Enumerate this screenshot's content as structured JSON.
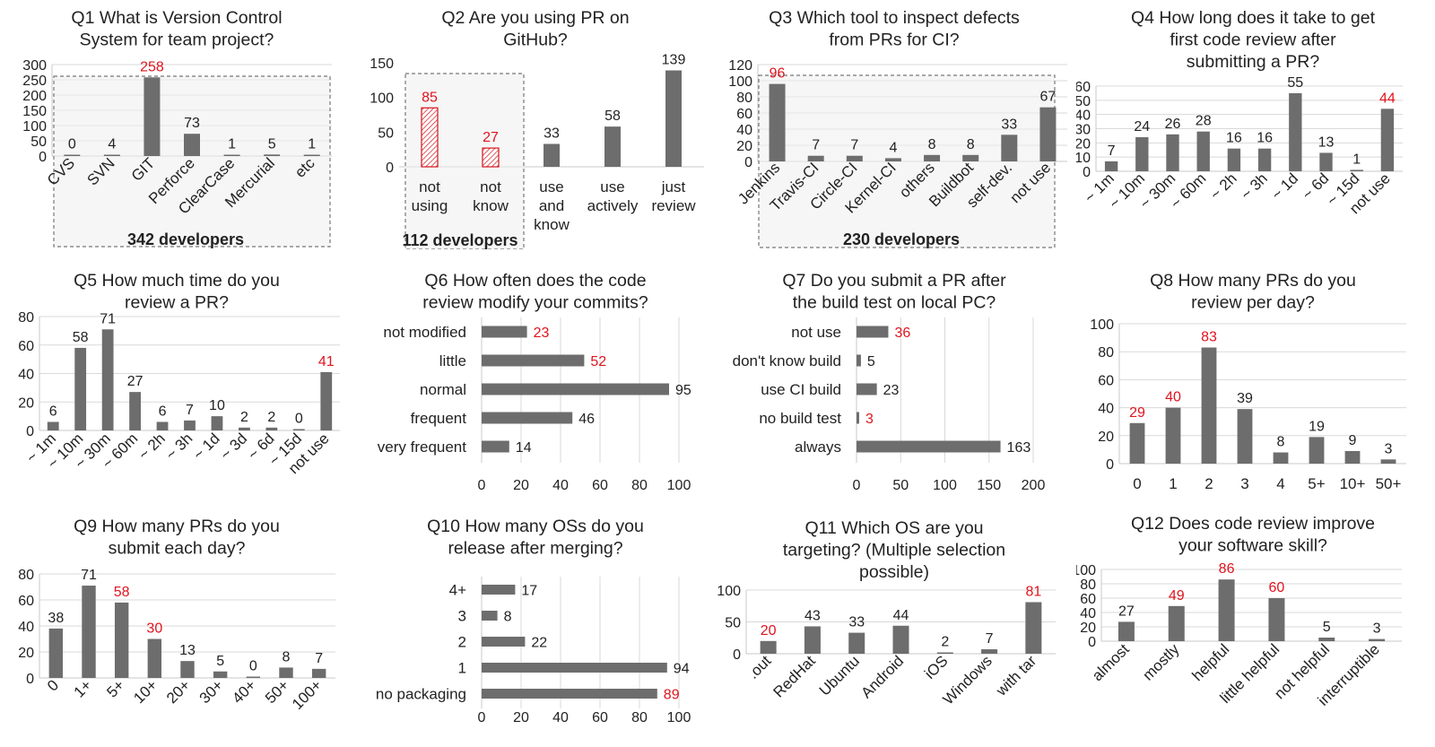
{
  "colors": {
    "bar": "#6d6d6d",
    "highlight": "#e0141e",
    "grid": "#d9d9d9"
  },
  "chart_data": [
    {
      "id": "q1",
      "type": "bar",
      "orientation": "vertical",
      "title": [
        "Q1 What is Version Control",
        "System  for team project?"
      ],
      "categories": [
        "CVS",
        "SVN",
        "GIT",
        "Perforce",
        "ClearCase",
        "Mercurial",
        "etc"
      ],
      "values": [
        0,
        4,
        258,
        73,
        1,
        5,
        1
      ],
      "highlight": [
        2
      ],
      "ylim": [
        0,
        300
      ],
      "yticks": [
        0,
        50,
        100,
        150,
        200,
        250,
        300
      ],
      "grid": true,
      "rotate_labels": true,
      "annotation": "342  developers"
    },
    {
      "id": "q2",
      "type": "bar",
      "orientation": "vertical",
      "title": [
        "Q2 Are you using PR on",
        "GitHub?"
      ],
      "categories": [
        [
          "not",
          "using"
        ],
        [
          "not",
          "know"
        ],
        [
          "use",
          "and",
          "know"
        ],
        [
          "use",
          "actively"
        ],
        [
          "just",
          "review"
        ]
      ],
      "values": [
        85,
        27,
        33,
        58,
        139
      ],
      "highlight": [
        0,
        1
      ],
      "hatched": [
        0,
        1
      ],
      "ylim": [
        0,
        150
      ],
      "yticks": [
        0,
        50,
        100,
        150
      ],
      "grid": false,
      "rotate_labels": false,
      "annotation": "112  developers"
    },
    {
      "id": "q3",
      "type": "bar",
      "orientation": "vertical",
      "title": [
        "Q3 Which tool to inspect defects",
        "from PRs for CI?"
      ],
      "categories": [
        "Jenkins",
        "Travis-CI",
        "Circle-CI",
        "Kernel-CI",
        "others",
        "Buildbot",
        "self-dev.",
        "not use"
      ],
      "values": [
        96,
        7,
        7,
        4,
        8,
        8,
        33,
        67
      ],
      "highlight": [
        0
      ],
      "ylim": [
        0,
        120
      ],
      "yticks": [
        0,
        20,
        40,
        60,
        80,
        100,
        120
      ],
      "grid": true,
      "rotate_labels": true,
      "annotation": "230  developers"
    },
    {
      "id": "q4",
      "type": "bar",
      "orientation": "vertical",
      "title": [
        "Q4 How long does it take to get",
        "first code review after",
        "submitting  a PR?"
      ],
      "categories": [
        "~ 1m",
        "~ 10m",
        "~ 30m",
        "~ 60m",
        "~ 2h",
        "~ 3h",
        "~ 1d",
        "~ 6d",
        "~ 15d",
        "not use"
      ],
      "values": [
        7,
        24,
        26,
        28,
        16,
        16,
        55,
        13,
        1,
        44
      ],
      "highlight": [
        9
      ],
      "ylim": [
        0,
        60
      ],
      "yticks": [
        0,
        10,
        20,
        30,
        40,
        50,
        60
      ],
      "grid": true,
      "rotate_labels": true
    },
    {
      "id": "q5",
      "type": "bar",
      "orientation": "vertical",
      "title": [
        "Q5 How much time do you",
        "review a PR?"
      ],
      "categories": [
        "~ 1m",
        "~ 10m",
        "~ 30m",
        "~ 60m",
        "~ 2h",
        "~ 3h",
        "~ 1d",
        "~ 3d",
        "~ 6d",
        "~ 15d",
        "not use"
      ],
      "values": [
        6,
        58,
        71,
        27,
        6,
        7,
        10,
        2,
        2,
        0,
        41
      ],
      "highlight": [
        10
      ],
      "ylim": [
        0,
        80
      ],
      "yticks": [
        0,
        20,
        40,
        60,
        80
      ],
      "grid": true,
      "rotate_labels": true
    },
    {
      "id": "q6",
      "type": "bar",
      "orientation": "horizontal",
      "title": [
        "Q6 How often does the code",
        "review modify your commits?"
      ],
      "categories": [
        "not modified",
        "little",
        "normal",
        "frequent",
        "very frequent"
      ],
      "values": [
        23,
        52,
        95,
        46,
        14
      ],
      "highlight": [
        0,
        1
      ],
      "xlim": [
        0,
        100
      ],
      "xticks": [
        0,
        20,
        40,
        60,
        80,
        100
      ],
      "grid": true
    },
    {
      "id": "q7",
      "type": "bar",
      "orientation": "horizontal",
      "title": [
        "Q7 Do you submit a PR after",
        "the build test on local PC?"
      ],
      "categories": [
        "not use",
        "don't know build",
        "use CI build",
        "no build test",
        "always"
      ],
      "values": [
        36,
        5,
        23,
        3,
        163
      ],
      "highlight": [
        0,
        3
      ],
      "xlim": [
        0,
        200
      ],
      "xticks": [
        0,
        50,
        100,
        150,
        200
      ],
      "grid": true
    },
    {
      "id": "q8",
      "type": "bar",
      "orientation": "vertical",
      "title": [
        "Q8 How many PRs do you",
        "review per day?"
      ],
      "categories": [
        "0",
        "1",
        "2",
        "3",
        "4",
        "5+",
        "10+",
        "50+"
      ],
      "values": [
        29,
        40,
        83,
        39,
        8,
        19,
        9,
        3
      ],
      "highlight": [
        0,
        1,
        2
      ],
      "ylim": [
        0,
        100
      ],
      "yticks": [
        0,
        20,
        40,
        60,
        80,
        100
      ],
      "grid": true,
      "rotate_labels": false
    },
    {
      "id": "q9",
      "type": "bar",
      "orientation": "vertical",
      "title": [
        "Q9 How many PRs do you",
        "submit each day?"
      ],
      "categories": [
        "0",
        "1+",
        "5+",
        "10+",
        "20+",
        "30+",
        "40+",
        "50+",
        "100+"
      ],
      "values": [
        38,
        71,
        58,
        30,
        13,
        5,
        0,
        8,
        7
      ],
      "highlight": [
        2,
        3
      ],
      "ylim": [
        0,
        80
      ],
      "yticks": [
        0,
        20,
        40,
        60,
        80
      ],
      "grid": true,
      "rotate_labels": true
    },
    {
      "id": "q10",
      "type": "bar",
      "orientation": "horizontal",
      "title": [
        "Q10 How many OSs do you",
        "release after merging?"
      ],
      "categories": [
        "4+",
        "3",
        "2",
        "1",
        "no packaging"
      ],
      "values": [
        17,
        8,
        22,
        94,
        89
      ],
      "highlight": [
        4
      ],
      "xlim": [
        0,
        100
      ],
      "xticks": [
        0,
        20,
        40,
        60,
        80,
        100
      ],
      "grid": true
    },
    {
      "id": "q11",
      "type": "bar",
      "orientation": "vertical",
      "title": [
        "Q11 Which OS are you",
        "targeting? (Multiple selection",
        "possible)"
      ],
      "categories": [
        ".out",
        "RedHat",
        "Ubuntu",
        "Android",
        "iOS",
        "Windows",
        "with tar"
      ],
      "values": [
        20,
        43,
        33,
        44,
        2,
        7,
        81
      ],
      "highlight": [
        0,
        6
      ],
      "ylim": [
        0,
        100
      ],
      "yticks": [
        0,
        50,
        100
      ],
      "grid": true,
      "rotate_labels": true
    },
    {
      "id": "q12",
      "type": "bar",
      "orientation": "vertical",
      "title": [
        "Q12 Does code review improve",
        "your software skill?"
      ],
      "categories": [
        "almost",
        "mostly",
        "helpful",
        "little helpful",
        "not helpful",
        "interruptible"
      ],
      "values": [
        27,
        49,
        86,
        60,
        5,
        3
      ],
      "highlight": [
        1,
        2,
        3
      ],
      "ylim": [
        0,
        100
      ],
      "yticks": [
        0,
        20,
        40,
        60,
        80,
        100
      ],
      "grid": true,
      "rotate_labels": true
    }
  ]
}
